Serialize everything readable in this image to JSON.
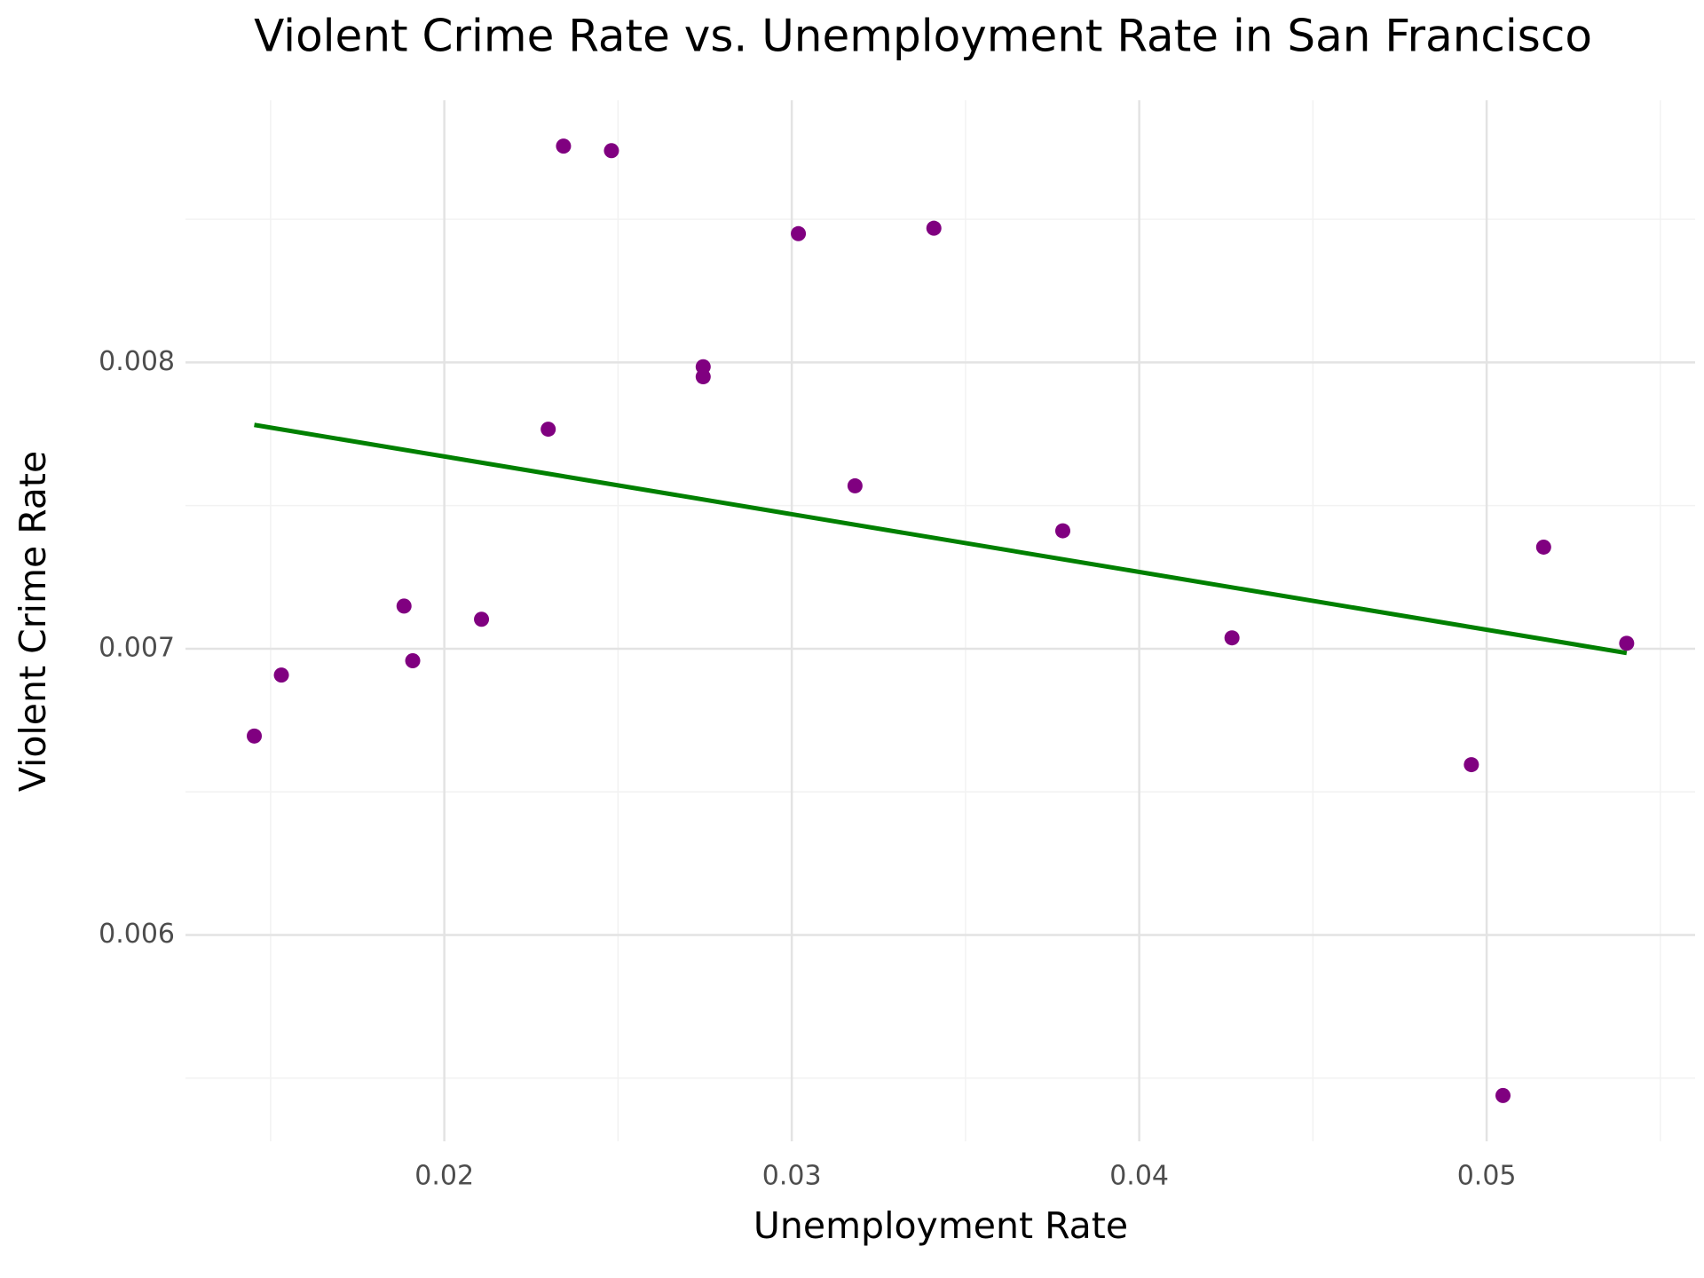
{
  "chart_data": {
    "type": "scatter",
    "title": "Violent Crime Rate vs. Unemployment Rate in San Francisco",
    "x_label": "Unemployment Rate",
    "y_label": "Violent Crime Rate",
    "xlim": [
      0.01255,
      0.056
    ],
    "ylim": [
      0.005279,
      0.008916
    ],
    "xticks": [
      0.02,
      0.03,
      0.04,
      0.05
    ],
    "yticks": [
      0.006,
      0.007,
      0.008
    ],
    "x_minor_grid": [
      0.015,
      0.025,
      0.035,
      0.045,
      0.055
    ],
    "y_minor_grid": [
      0.0055,
      0.0065,
      0.0075,
      0.0085
    ],
    "grid": true,
    "series": [
      {
        "color": "#800080",
        "x": [
          0.01453,
          0.01531,
          0.01884,
          0.01909,
          0.02107,
          0.02299,
          0.02343,
          0.02481,
          0.02745,
          0.02745,
          0.03019,
          0.03182,
          0.03409,
          0.0378,
          0.04267,
          0.04956,
          0.05047,
          0.05164,
          0.05403
        ],
        "values": [
          0.006695,
          0.006908,
          0.007149,
          0.006958,
          0.007103,
          0.007767,
          0.008756,
          0.00874,
          0.007985,
          0.00795,
          0.00845,
          0.007569,
          0.008469,
          0.007412,
          0.007038,
          0.006595,
          0.005439,
          0.007355,
          0.007019
        ]
      }
    ],
    "trend_line": {
      "color": "#008000",
      "x": [
        0.01453,
        0.05403
      ],
      "values": [
        0.007782,
        0.006985
      ]
    }
  }
}
